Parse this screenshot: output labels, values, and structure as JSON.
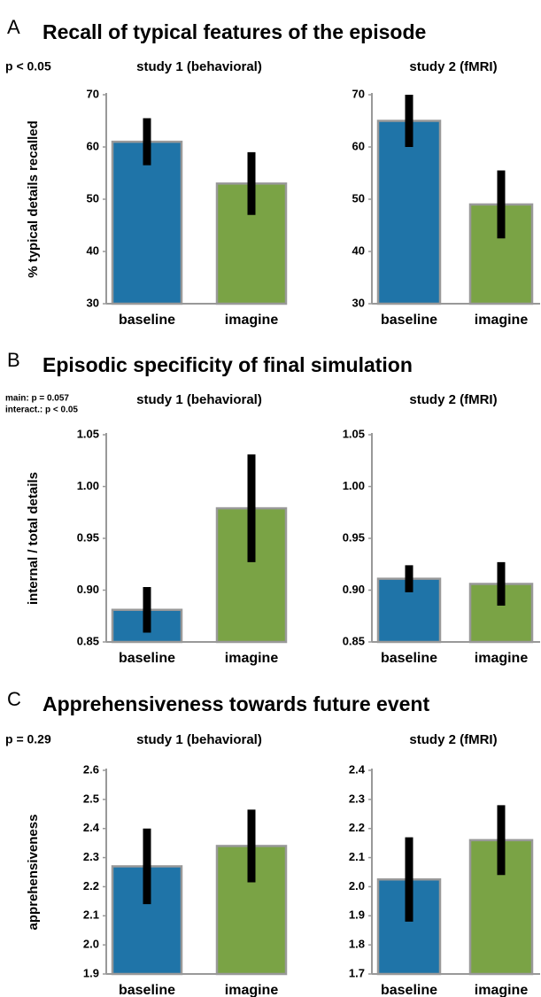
{
  "chart_data": [
    {
      "type": "bar",
      "panel": "A",
      "panel_title": "Recall of typical features of the episode",
      "annotation": [
        "p < 0.05"
      ],
      "ylabel": "% typical details recalled",
      "title": "study 1 (behavioral)",
      "categories": [
        "baseline",
        "imagine"
      ],
      "values": [
        61,
        53
      ],
      "errors": [
        4.5,
        6
      ],
      "colors": [
        "#1f74a8",
        "#7aa345"
      ],
      "ylim": [
        30,
        70
      ],
      "yticks": [
        30,
        40,
        50,
        60,
        70
      ]
    },
    {
      "type": "bar",
      "title": "study 2 (fMRI)",
      "categories": [
        "baseline",
        "imagine"
      ],
      "values": [
        65,
        49
      ],
      "errors": [
        5,
        6.5
      ],
      "colors": [
        "#1f74a8",
        "#7aa345"
      ],
      "ylim": [
        30,
        70
      ],
      "yticks": [
        30,
        40,
        50,
        60,
        70
      ]
    },
    {
      "type": "bar",
      "panel": "B",
      "panel_title": "Episodic specificity of final simulation",
      "annotation": [
        "main: p = 0.057",
        "interact.: p < 0.05"
      ],
      "ylabel": "internal / total details",
      "title": "study 1 (behavioral)",
      "categories": [
        "baseline",
        "imagine"
      ],
      "values": [
        0.881,
        0.979
      ],
      "errors": [
        0.022,
        0.052
      ],
      "colors": [
        "#1f74a8",
        "#7aa345"
      ],
      "ylim": [
        0.85,
        1.05
      ],
      "yticks": [
        0.85,
        {
          "value": 0.9,
          "label": "0.90"
        },
        0.95,
        {
          "value": 1,
          "label": "1.00"
        },
        1.05
      ]
    },
    {
      "type": "bar",
      "title": "study 2 (fMRI)",
      "categories": [
        "baseline",
        "imagine"
      ],
      "values": [
        0.911,
        0.906
      ],
      "errors": [
        0.013,
        0.021
      ],
      "colors": [
        "#1f74a8",
        "#7aa345"
      ],
      "ylim": [
        0.85,
        1.05
      ],
      "yticks": [
        0.85,
        {
          "value": 0.9,
          "label": "0.90"
        },
        0.95,
        {
          "value": 1,
          "label": "1.00"
        },
        1.05
      ]
    },
    {
      "type": "bar",
      "panel": "C",
      "panel_title": "Apprehensiveness towards future event",
      "annotation": [
        "p = 0.29"
      ],
      "ylabel": "apprehensiveness",
      "title": "study 1 (behavioral)",
      "categories": [
        "baseline",
        "imagine"
      ],
      "values": [
        2.27,
        2.34
      ],
      "errors": [
        0.13,
        0.125
      ],
      "colors": [
        "#1f74a8",
        "#7aa345"
      ],
      "ylim": [
        1.9,
        2.6
      ],
      "yticks": [
        1.9,
        {
          "value": 2,
          "label": "2.0"
        },
        2.1,
        2.2,
        2.3,
        2.4,
        2.5,
        2.6
      ]
    },
    {
      "type": "bar",
      "title": "study 2 (fMRI)",
      "categories": [
        "baseline",
        "imagine"
      ],
      "values": [
        2.025,
        2.16
      ],
      "errors": [
        0.145,
        0.12
      ],
      "colors": [
        "#1f74a8",
        "#7aa345"
      ],
      "ylim": [
        1.7,
        2.4
      ],
      "yticks": [
        1.7,
        1.8,
        1.9,
        {
          "value": 2,
          "label": "2.0"
        },
        2.1,
        2.2,
        2.3,
        2.4
      ]
    }
  ]
}
